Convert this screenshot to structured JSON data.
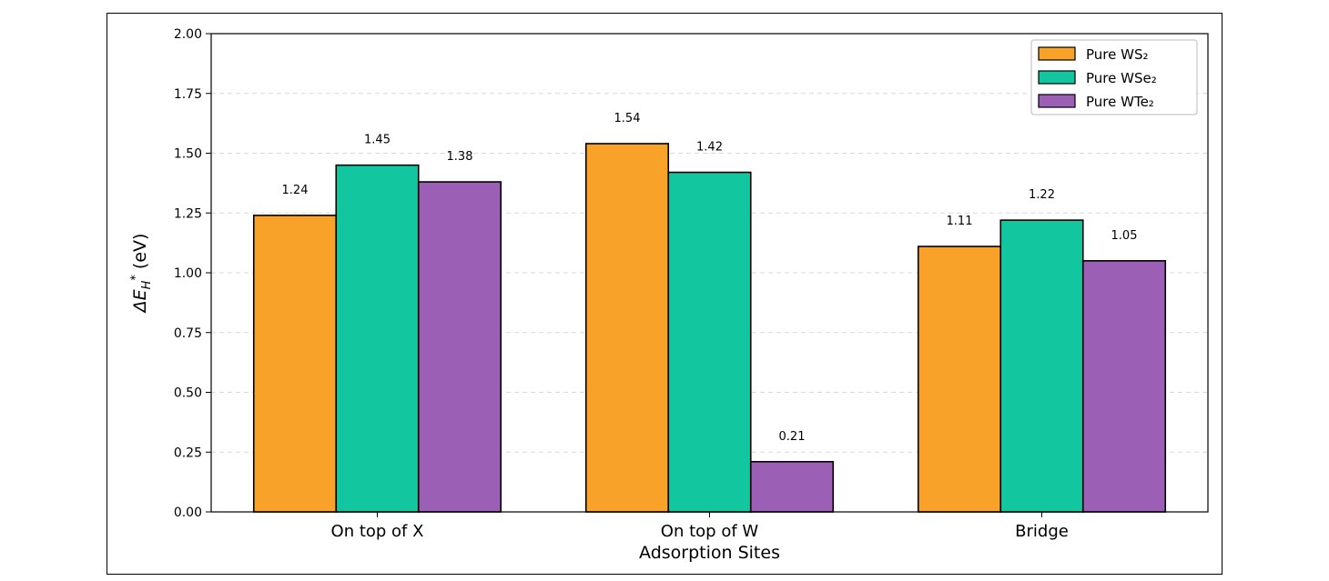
{
  "chart_data": {
    "type": "bar",
    "categories": [
      "On top of X",
      "On top of W",
      "Bridge"
    ],
    "series": [
      {
        "name": "Pure WS₂",
        "values": [
          1.24,
          1.54,
          1.11
        ],
        "color": "#F9A229"
      },
      {
        "name": "Pure WSe₂",
        "values": [
          1.45,
          1.42,
          1.22
        ],
        "color": "#12C7A0"
      },
      {
        "name": "Pure WTe₂",
        "values": [
          1.38,
          0.21,
          1.05
        ],
        "color": "#9B5FB6"
      }
    ],
    "value_labels": [
      [
        "1.24",
        "1.54",
        "1.11"
      ],
      [
        "1.45",
        "1.42",
        "1.22"
      ],
      [
        "1.38",
        "0.21",
        "1.05"
      ]
    ],
    "yticks": [
      "0.00",
      "0.25",
      "0.50",
      "0.75",
      "1.00",
      "1.25",
      "1.50",
      "1.75",
      "2.00"
    ],
    "ylim": [
      0,
      2.0
    ],
    "xlabel": "Adsorption Sites",
    "ylabel_main": "ΔE",
    "ylabel_sub": "H",
    "ylabel_sup": "*",
    "ylabel_unit": " (eV)",
    "grid": "y-dashed",
    "legend_position": "top-right"
  }
}
